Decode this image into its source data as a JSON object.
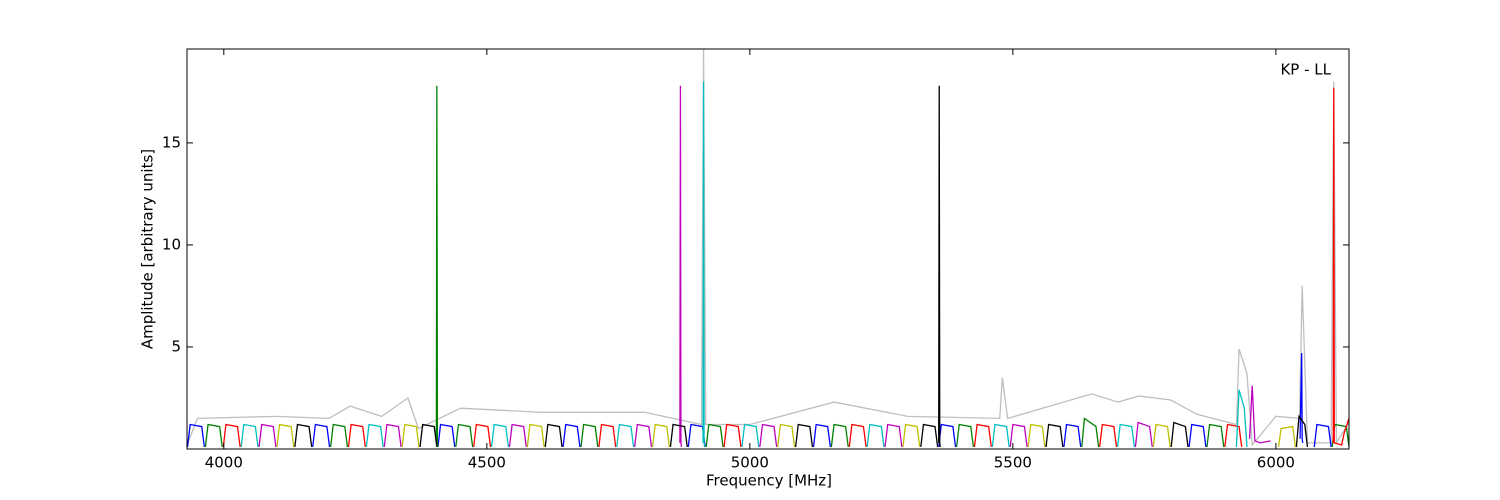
{
  "chart_data": {
    "type": "line",
    "xlabel": "Frequency [MHz]",
    "ylabel": "Amplitude [arbitrary units]",
    "annotation": "KP - LL",
    "xlim": [
      3930,
      6139
    ],
    "ylim": [
      0,
      19.6
    ],
    "xticks": [
      4000,
      4500,
      5000,
      5500,
      6000
    ],
    "yticks": [
      5,
      10,
      15
    ],
    "series": [
      {
        "color": "#bfbfbf",
        "x": [
          3930,
          3950,
          4100,
          4200,
          4240,
          4300,
          4350,
          4370,
          4450,
          4600,
          4800,
          4908,
          4912,
          4916,
          5000,
          5160,
          5300,
          5475,
          5480,
          5490,
          5650,
          5700,
          5740,
          5800,
          5850,
          5925,
          5930,
          5945,
          5955,
          6000,
          6045,
          6050,
          6060,
          6105,
          6110,
          6115,
          6139
        ],
        "values": [
          0.2,
          1.5,
          1.6,
          1.5,
          2.1,
          1.6,
          2.5,
          1.0,
          2.0,
          1.8,
          1.8,
          1.2,
          19.6,
          1.2,
          1.2,
          2.3,
          1.6,
          1.5,
          3.5,
          1.5,
          2.7,
          2.3,
          2.6,
          2.4,
          1.7,
          1.2,
          4.9,
          3.7,
          0.2,
          1.6,
          1.5,
          8.0,
          0.3,
          0.3,
          18.0,
          0.3,
          1.3
        ]
      },
      {
        "color": "#0000ff",
        "x": [
          3931,
          3936,
          3958,
          3963,
          3964,
          4169,
          4174,
          4196,
          4201,
          4202,
          4407,
          4412,
          4434,
          4439,
          4440,
          4645,
          4650,
          4672,
          4677,
          4678,
          4883,
          4888,
          4910,
          4915,
          4916,
          5121,
          5126,
          5148,
          5153,
          5154,
          5359,
          5364,
          5386,
          5391,
          5392,
          5597,
          5602,
          5624,
          5629,
          5630,
          5835,
          5840,
          5862,
          5867,
          5868,
          6046,
          6049,
          6050,
          6051,
          6052,
          6073,
          6078,
          6100,
          6105
        ],
        "values": [
          0.1,
          1.2,
          1.1,
          0.1,
          null,
          0.1,
          1.2,
          1.1,
          0.1,
          null,
          0.1,
          1.2,
          1.1,
          0.1,
          null,
          0.1,
          1.2,
          1.1,
          0.1,
          null,
          0.1,
          1.2,
          1.1,
          0.1,
          null,
          0.1,
          1.2,
          1.1,
          0.1,
          null,
          0.1,
          1.2,
          1.1,
          0.1,
          null,
          0.1,
          1.2,
          1.1,
          0.1,
          null,
          0.1,
          1.2,
          1.1,
          0.1,
          null,
          0.5,
          4.7,
          0.5,
          0.3,
          null,
          0.1,
          1.2,
          1.1,
          0.1
        ]
      },
      {
        "color": "#008000",
        "x": [
          3965,
          3970,
          3992,
          3997,
          3998,
          4203,
          4208,
          4230,
          4235,
          4236,
          4404,
          4405,
          4406,
          4407,
          4408,
          4441,
          4446,
          4468,
          4473,
          4474,
          4679,
          4684,
          4706,
          4711,
          4712,
          4917,
          4922,
          4944,
          4949,
          4950,
          5155,
          5160,
          5182,
          5187,
          5188,
          5393,
          5398,
          5420,
          5425,
          5426,
          5631,
          5636,
          5658,
          5663,
          5664,
          5869,
          5874,
          5896,
          5901,
          5902,
          6107,
          6112,
          6134,
          6139
        ],
        "values": [
          0.1,
          1.2,
          1.1,
          0.1,
          null,
          0.1,
          1.2,
          1.1,
          0.1,
          null,
          0.3,
          17.8,
          0.3,
          0.1,
          null,
          0.1,
          1.2,
          1.1,
          0.1,
          null,
          0.1,
          1.2,
          1.1,
          0.1,
          null,
          0.1,
          1.2,
          1.1,
          0.1,
          null,
          0.1,
          1.2,
          1.1,
          0.1,
          null,
          0.1,
          1.2,
          1.1,
          0.1,
          null,
          0.1,
          1.5,
          1.1,
          0.1,
          null,
          0.1,
          1.2,
          1.1,
          0.1,
          null,
          0.1,
          1.2,
          1.1,
          0.1
        ]
      },
      {
        "color": "#ff0000",
        "x": [
          3999,
          4004,
          4026,
          4031,
          4032,
          4237,
          4242,
          4264,
          4269,
          4270,
          4475,
          4480,
          4502,
          4507,
          4508,
          4713,
          4718,
          4740,
          4745,
          4746,
          4951,
          4956,
          4978,
          4983,
          4984,
          5189,
          5194,
          5216,
          5221,
          5222,
          5427,
          5432,
          5454,
          5459,
          5460,
          5665,
          5670,
          5692,
          5697,
          5698,
          5903,
          5908,
          5930,
          5935,
          5936,
          6109,
          6110,
          6111,
          6125,
          6130,
          6139
        ],
        "values": [
          0.1,
          1.2,
          1.1,
          0.1,
          null,
          0.1,
          1.2,
          1.1,
          0.1,
          null,
          0.1,
          1.2,
          1.1,
          0.1,
          null,
          0.1,
          1.2,
          1.1,
          0.1,
          null,
          0.1,
          1.2,
          1.1,
          0.1,
          null,
          0.1,
          1.2,
          1.1,
          0.1,
          null,
          0.1,
          1.2,
          1.1,
          0.1,
          null,
          0.1,
          1.2,
          1.1,
          0.1,
          null,
          0.1,
          1.2,
          1.1,
          0.1,
          null,
          0.3,
          17.7,
          0.3,
          0.2,
          0.8,
          1.5
        ]
      },
      {
        "color": "#00bfbf",
        "x": [
          4033,
          4038,
          4060,
          4065,
          4066,
          4271,
          4276,
          4298,
          4303,
          4304,
          4509,
          4514,
          4536,
          4541,
          4542,
          4747,
          4752,
          4774,
          4779,
          4780,
          4911,
          4912,
          4913,
          4914,
          4915,
          4985,
          4990,
          5012,
          5017,
          5018,
          5223,
          5228,
          5250,
          5255,
          5256,
          5461,
          5466,
          5488,
          5493,
          5494,
          5699,
          5704,
          5726,
          5731,
          5732,
          5925,
          5930,
          5940,
          5945
        ],
        "values": [
          0.1,
          1.2,
          1.1,
          0.1,
          null,
          0.1,
          1.2,
          1.1,
          0.1,
          null,
          0.1,
          1.2,
          1.1,
          0.1,
          null,
          0.1,
          1.2,
          1.1,
          0.1,
          null,
          0.3,
          18.0,
          0.3,
          0.1,
          null,
          0.1,
          1.2,
          1.1,
          0.1,
          null,
          0.1,
          1.2,
          1.1,
          0.1,
          null,
          0.1,
          1.2,
          1.1,
          0.1,
          null,
          0.1,
          1.2,
          1.1,
          0.1,
          null,
          0.1,
          2.9,
          2.0,
          0.1
        ]
      },
      {
        "color": "#bf00bf",
        "x": [
          4067,
          4072,
          4094,
          4099,
          4100,
          4305,
          4310,
          4332,
          4337,
          4338,
          4543,
          4548,
          4570,
          4575,
          4576,
          4781,
          4786,
          4808,
          4813,
          4814,
          4867,
          4868,
          4869,
          4870,
          4871,
          5019,
          5024,
          5046,
          5051,
          5052,
          5257,
          5262,
          5284,
          5289,
          5290,
          5495,
          5500,
          5522,
          5527,
          5528,
          5733,
          5738,
          5760,
          5765,
          5766,
          5950,
          5955,
          5960,
          5970,
          5990
        ],
        "values": [
          0.1,
          1.2,
          1.1,
          0.1,
          null,
          0.1,
          1.2,
          1.1,
          0.1,
          null,
          0.1,
          1.2,
          1.1,
          0.1,
          null,
          0.1,
          1.2,
          1.1,
          0.1,
          null,
          0.3,
          17.8,
          0.3,
          0.1,
          null,
          0.1,
          1.2,
          1.1,
          0.1,
          null,
          0.1,
          1.2,
          1.1,
          0.1,
          null,
          0.1,
          1.2,
          1.1,
          0.1,
          null,
          0.1,
          1.3,
          1.1,
          0.1,
          null,
          0.5,
          3.1,
          0.4,
          0.3,
          0.4
        ]
      },
      {
        "color": "#bfbf00",
        "x": [
          4101,
          4106,
          4128,
          4133,
          4134,
          4339,
          4344,
          4366,
          4371,
          4372,
          4577,
          4582,
          4604,
          4609,
          4610,
          4815,
          4820,
          4842,
          4847,
          4848,
          5053,
          5058,
          5080,
          5085,
          5086,
          5291,
          5296,
          5318,
          5323,
          5324,
          5529,
          5534,
          5556,
          5561,
          5562,
          5767,
          5772,
          5794,
          5799,
          5800,
          6005,
          6010,
          6032,
          6037
        ],
        "values": [
          0.1,
          1.2,
          1.1,
          0.1,
          null,
          0.1,
          1.2,
          1.1,
          0.1,
          null,
          0.1,
          1.2,
          1.1,
          0.1,
          null,
          0.1,
          1.2,
          1.1,
          0.1,
          null,
          0.1,
          1.2,
          1.1,
          0.1,
          null,
          0.1,
          1.2,
          1.1,
          0.1,
          null,
          0.1,
          1.2,
          1.1,
          0.1,
          null,
          0.1,
          1.2,
          1.1,
          0.1,
          null,
          0.1,
          1.0,
          1.1,
          0.1
        ]
      },
      {
        "color": "#000000",
        "x": [
          4135,
          4140,
          4162,
          4167,
          4168,
          4373,
          4378,
          4400,
          4405,
          4406,
          4611,
          4616,
          4638,
          4643,
          4644,
          4849,
          4854,
          4876,
          4881,
          4882,
          5087,
          5092,
          5114,
          5119,
          5120,
          5325,
          5330,
          5352,
          5357,
          5358,
          5359,
          5360,
          5361,
          5362,
          5363,
          5563,
          5568,
          5590,
          5595,
          5596,
          5801,
          5806,
          5828,
          5833,
          5834,
          6039,
          6044,
          6055,
          6060
        ],
        "values": [
          0.1,
          1.2,
          1.1,
          0.1,
          null,
          0.1,
          1.2,
          1.1,
          0.1,
          null,
          0.1,
          1.2,
          1.1,
          0.1,
          null,
          0.1,
          1.2,
          1.1,
          0.1,
          null,
          0.1,
          1.2,
          1.1,
          0.1,
          null,
          0.1,
          1.2,
          1.1,
          0.1,
          null,
          0.3,
          17.8,
          0.3,
          0.1,
          null,
          0.1,
          1.2,
          1.1,
          0.1,
          null,
          0.1,
          1.3,
          1.1,
          0.1,
          null,
          0.1,
          1.6,
          1.2,
          0.1
        ]
      }
    ]
  }
}
